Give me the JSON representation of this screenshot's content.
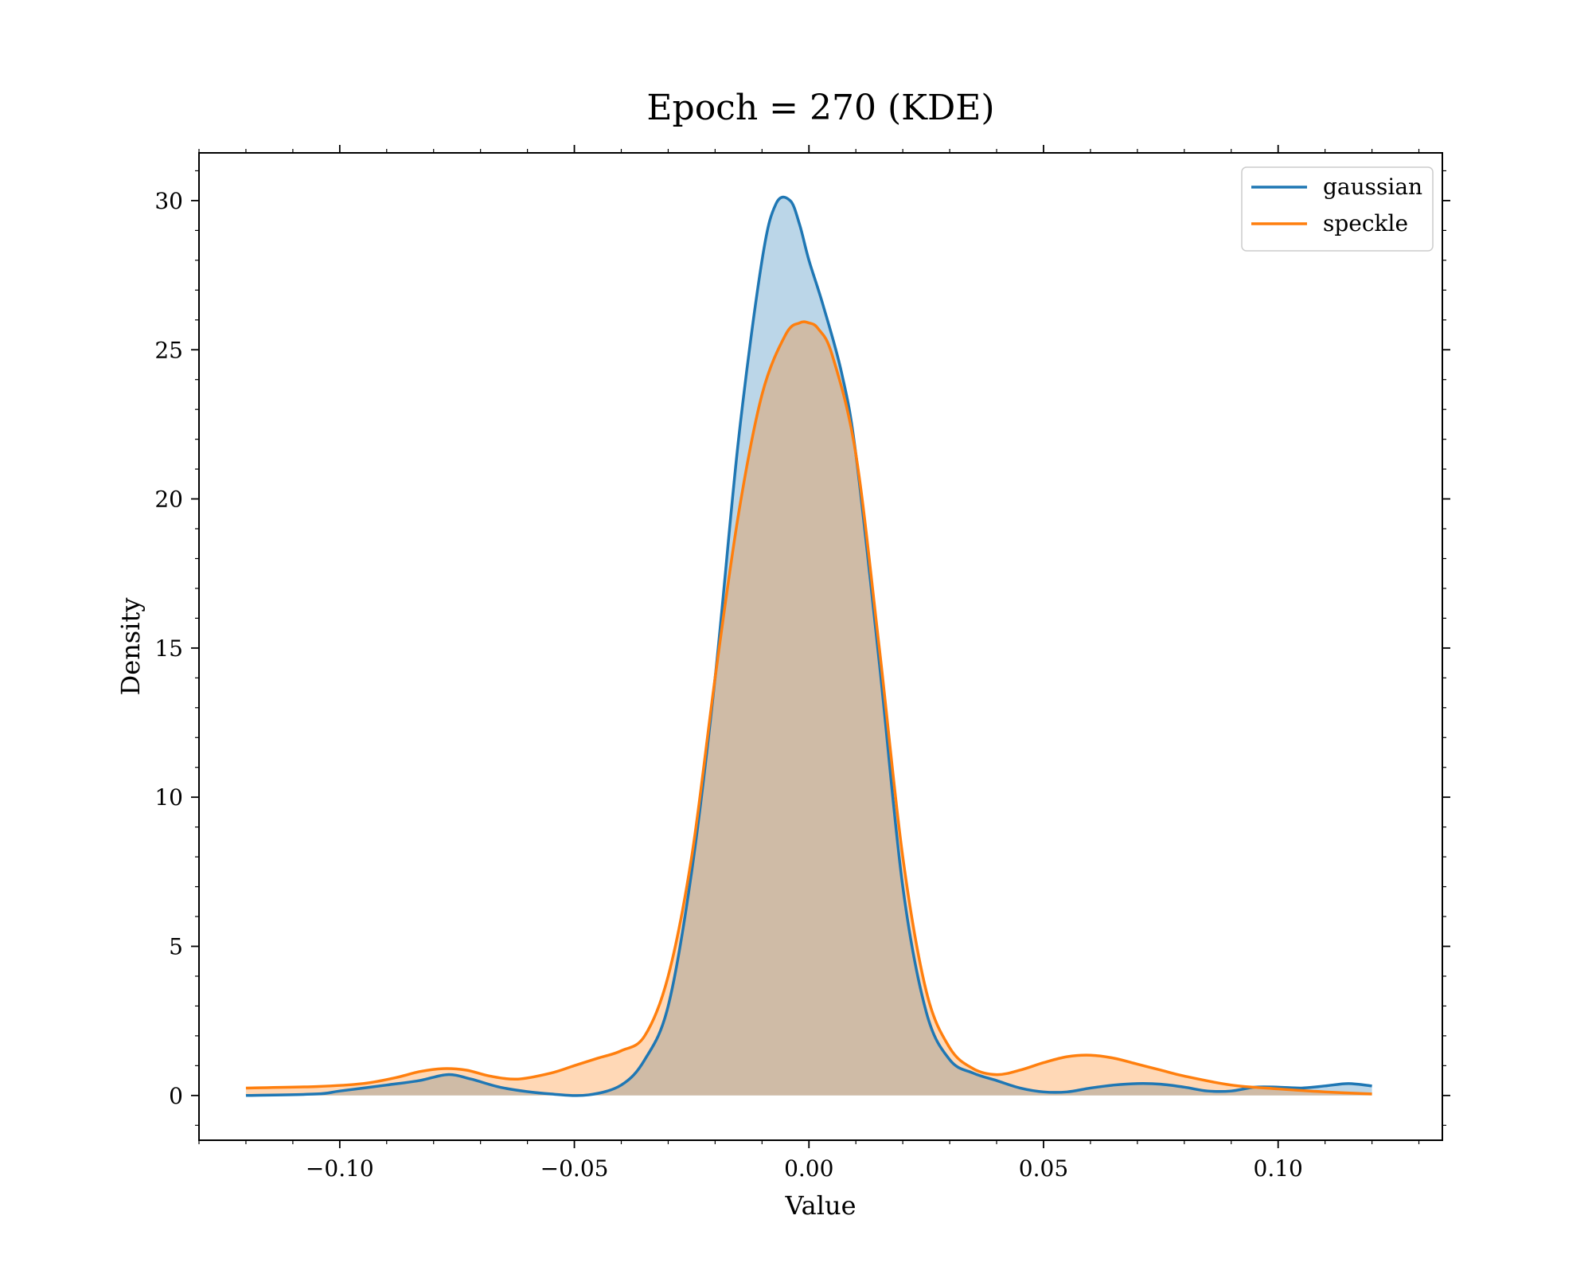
{
  "chart_data": {
    "type": "area",
    "title": "Epoch = 270 (KDE)",
    "xlabel": "Value",
    "ylabel": "Density",
    "xlim": [
      -0.13,
      0.135
    ],
    "ylim": [
      -1.5,
      31.6
    ],
    "xticks": [
      -0.1,
      -0.05,
      0.0,
      0.05,
      0.1
    ],
    "xtick_labels": [
      "−0.10",
      "−0.05",
      "0.00",
      "0.05",
      "0.10"
    ],
    "yticks": [
      0,
      5,
      10,
      15,
      20,
      25,
      30
    ],
    "ytick_labels": [
      "0",
      "5",
      "10",
      "15",
      "20",
      "25",
      "30"
    ],
    "grid": false,
    "legend_position": "upper right",
    "series": [
      {
        "name": "gaussian",
        "color": "#1f77b4",
        "x": [
          -0.12,
          -0.105,
          -0.1,
          -0.09,
          -0.083,
          -0.077,
          -0.072,
          -0.065,
          -0.055,
          -0.047,
          -0.04,
          -0.035,
          -0.03,
          -0.025,
          -0.02,
          -0.015,
          -0.01,
          -0.007,
          -0.004,
          -0.002,
          0.0,
          0.003,
          0.007,
          0.01,
          0.015,
          0.02,
          0.025,
          0.03,
          0.035,
          0.04,
          0.045,
          0.05,
          0.055,
          0.06,
          0.065,
          0.07,
          0.075,
          0.08,
          0.085,
          0.09,
          0.095,
          0.1,
          0.105,
          0.11,
          0.115,
          0.12
        ],
        "y": [
          0.0,
          0.05,
          0.15,
          0.35,
          0.5,
          0.7,
          0.55,
          0.25,
          0.05,
          0.02,
          0.35,
          1.2,
          3.0,
          7.5,
          14.0,
          22.0,
          28.0,
          29.9,
          30.0,
          29.2,
          28.0,
          26.5,
          24.2,
          21.5,
          14.5,
          7.0,
          2.8,
          1.2,
          0.75,
          0.5,
          0.25,
          0.12,
          0.12,
          0.25,
          0.35,
          0.4,
          0.38,
          0.28,
          0.15,
          0.15,
          0.28,
          0.28,
          0.25,
          0.32,
          0.4,
          0.32
        ]
      },
      {
        "name": "speckle",
        "color": "#ff7f0e",
        "x": [
          -0.12,
          -0.105,
          -0.095,
          -0.088,
          -0.083,
          -0.078,
          -0.073,
          -0.068,
          -0.062,
          -0.055,
          -0.05,
          -0.045,
          -0.04,
          -0.035,
          -0.03,
          -0.025,
          -0.02,
          -0.015,
          -0.01,
          -0.005,
          -0.002,
          0.0,
          0.002,
          0.005,
          0.01,
          0.015,
          0.02,
          0.025,
          0.03,
          0.035,
          0.04,
          0.045,
          0.05,
          0.055,
          0.06,
          0.065,
          0.07,
          0.075,
          0.08,
          0.09,
          0.1,
          0.11,
          0.12
        ],
        "y": [
          0.25,
          0.3,
          0.4,
          0.6,
          0.8,
          0.9,
          0.85,
          0.65,
          0.55,
          0.75,
          1.0,
          1.25,
          1.5,
          2.0,
          4.0,
          8.0,
          14.0,
          19.5,
          23.5,
          25.5,
          25.9,
          25.9,
          25.7,
          24.8,
          21.5,
          15.0,
          8.0,
          3.5,
          1.6,
          0.9,
          0.7,
          0.85,
          1.1,
          1.3,
          1.35,
          1.25,
          1.05,
          0.85,
          0.65,
          0.35,
          0.22,
          0.12,
          0.05
        ]
      }
    ]
  }
}
